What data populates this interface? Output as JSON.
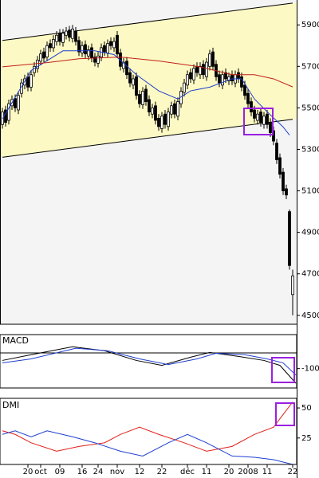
{
  "chart_data": [
    {
      "type": "candlestick",
      "categories": [
        null,
        null,
        null,
        null,
        null,
        null,
        null,
        null,
        "20",
        null,
        null,
        null,
        "oct",
        null,
        null,
        null,
        null,
        null,
        "09",
        null,
        null,
        null,
        null,
        null,
        null,
        "16",
        null,
        null,
        null,
        null,
        "24",
        null,
        null,
        null,
        null,
        null,
        "nov",
        null,
        null,
        null,
        null,
        null,
        null,
        "12",
        null,
        null,
        null,
        null,
        null,
        null,
        "22",
        null,
        null,
        null,
        null,
        null,
        null,
        null,
        "déc",
        null,
        null,
        null,
        null,
        null,
        "11",
        null,
        null,
        null,
        null,
        null,
        null,
        "20",
        null,
        null,
        null,
        null,
        null,
        "2008",
        null,
        null,
        null,
        null,
        null,
        "11",
        null,
        null,
        null,
        null,
        null,
        null,
        null,
        "22"
      ],
      "open": [
        5420,
        5490,
        5440,
        5510,
        5545,
        5490,
        5570,
        5610,
        5650,
        5600,
        5670,
        5690,
        5725,
        5770,
        5745,
        5810,
        5790,
        5820,
        5860,
        5815,
        5850,
        5875,
        5835,
        5870,
        5825,
        5765,
        5805,
        5750,
        5790,
        5745,
        5715,
        5745,
        5800,
        5765,
        5820,
        5790,
        5850,
        5765,
        5690,
        5725,
        5670,
        5610,
        5650,
        5565,
        5515,
        5590,
        5540,
        5470,
        5510,
        5450,
        5400,
        5470,
        5410,
        5470,
        5520,
        5460,
        5520,
        5575,
        5610,
        5670,
        5635,
        5700,
        5660,
        5710,
        5650,
        5700,
        5770,
        5710,
        5660,
        5610,
        5670,
        5630,
        5660,
        5620,
        5670,
        5650,
        5610,
        5570,
        5530,
        5490,
        5440,
        5480,
        5420,
        5470,
        5430,
        5390,
        5330,
        5260,
        5190,
        5110,
        5000,
        4600
      ],
      "high": [
        5500,
        5510,
        5540,
        5560,
        5565,
        5580,
        5640,
        5660,
        5670,
        5680,
        5720,
        5750,
        5780,
        5790,
        5820,
        5830,
        5850,
        5870,
        5880,
        5880,
        5890,
        5895,
        5900,
        5890,
        5845,
        5820,
        5825,
        5800,
        5810,
        5765,
        5770,
        5810,
        5820,
        5830,
        5840,
        5840,
        5870,
        5785,
        5740,
        5745,
        5690,
        5660,
        5670,
        5585,
        5600,
        5610,
        5560,
        5520,
        5530,
        5470,
        5480,
        5490,
        5500,
        5530,
        5540,
        5550,
        5600,
        5640,
        5680,
        5690,
        5710,
        5720,
        5720,
        5730,
        5740,
        5780,
        5790,
        5730,
        5680,
        5680,
        5690,
        5670,
        5680,
        5680,
        5690,
        5670,
        5630,
        5590,
        5550,
        5510,
        5490,
        5500,
        5480,
        5490,
        5450,
        5410,
        5350,
        5280,
        5210,
        5130,
        5010,
        4720
      ],
      "low": [
        5400,
        5410,
        5420,
        5490,
        5480,
        5470,
        5550,
        5590,
        5580,
        5580,
        5650,
        5670,
        5705,
        5720,
        5725,
        5770,
        5770,
        5800,
        5800,
        5795,
        5830,
        5820,
        5815,
        5800,
        5750,
        5745,
        5740,
        5730,
        5720,
        5700,
        5695,
        5725,
        5750,
        5745,
        5780,
        5770,
        5740,
        5680,
        5670,
        5640,
        5600,
        5590,
        5540,
        5500,
        5495,
        5510,
        5460,
        5450,
        5420,
        5390,
        5380,
        5400,
        5390,
        5450,
        5450,
        5440,
        5500,
        5555,
        5590,
        5620,
        5615,
        5650,
        5640,
        5640,
        5630,
        5680,
        5680,
        5630,
        5600,
        5590,
        5620,
        5610,
        5610,
        5600,
        5620,
        5580,
        5540,
        5500,
        5460,
        5430,
        5420,
        5410,
        5400,
        5400,
        5360,
        5320,
        5230,
        5160,
        5080,
        5060,
        4720,
        4500
      ],
      "close": [
        5480,
        5430,
        5520,
        5540,
        5500,
        5560,
        5620,
        5640,
        5600,
        5660,
        5700,
        5730,
        5760,
        5740,
        5800,
        5790,
        5830,
        5850,
        5820,
        5860,
        5870,
        5840,
        5880,
        5820,
        5770,
        5800,
        5760,
        5780,
        5740,
        5720,
        5750,
        5790,
        5770,
        5810,
        5800,
        5820,
        5760,
        5700,
        5720,
        5660,
        5620,
        5640,
        5560,
        5520,
        5580,
        5530,
        5480,
        5500,
        5440,
        5410,
        5460,
        5420,
        5480,
        5510,
        5470,
        5530,
        5580,
        5620,
        5660,
        5640,
        5690,
        5670,
        5700,
        5660,
        5720,
        5760,
        5700,
        5650,
        5620,
        5660,
        5640,
        5650,
        5630,
        5660,
        5640,
        5600,
        5560,
        5520,
        5480,
        5450,
        5470,
        5430,
        5460,
        5420,
        5380,
        5340,
        5250,
        5180,
        5100,
        5080,
        4740,
        4690
      ],
      "channel": [
        {
          "color": "#000000",
          "x": [
            0,
            91
          ],
          "values": [
            5825,
            6005
          ]
        },
        {
          "color": "#000000",
          "x": [
            0,
            91
          ],
          "values": [
            5262,
            5445
          ]
        }
      ],
      "channel_fill": "#fdf9c4",
      "overlays": [
        {
          "color": "#1f3fd0",
          "x": [
            0,
            9,
            19,
            29,
            35,
            42,
            49,
            55,
            59,
            65,
            72,
            75,
            79,
            84,
            88,
            90
          ],
          "values": [
            5447,
            5680,
            5775,
            5775,
            5757,
            5660,
            5582,
            5543,
            5582,
            5600,
            5640,
            5640,
            5543,
            5466,
            5408,
            5369
          ]
        },
        {
          "color": "#c0201a",
          "x": [
            0,
            14,
            24,
            37,
            49,
            62,
            72,
            79,
            85,
            91
          ],
          "values": [
            5698,
            5718,
            5737,
            5745,
            5726,
            5698,
            5660,
            5660,
            5640,
            5601
          ]
        }
      ],
      "ylim": [
        4457,
        6020
      ],
      "yticks": [
        4500,
        4700,
        4900,
        5100,
        5300,
        5500,
        5700,
        5900
      ]
    },
    {
      "type": "line",
      "title": "MACD",
      "series": [
        {
          "color": "#000000",
          "x": [
            0,
            9,
            22,
            32,
            42,
            50,
            59,
            65,
            74,
            82,
            87,
            92
          ],
          "values": [
            -47,
            -10,
            42,
            16,
            -47,
            -79,
            -26,
            5,
            -21,
            -47,
            -79,
            -195
          ]
        },
        {
          "color": "#1f3fd0",
          "x": [
            0,
            9,
            23,
            33,
            43,
            52,
            61,
            67,
            76,
            83,
            88,
            92
          ],
          "values": [
            -63,
            -37,
            32,
            16,
            -37,
            -74,
            -37,
            0,
            -10,
            -37,
            -63,
            -142
          ]
        }
      ],
      "ylim": [
        -226,
        121
      ],
      "yticks": [
        -100
      ]
    },
    {
      "type": "line",
      "title": "DMI",
      "series": [
        {
          "color": "#e0201a",
          "x": [
            0,
            4,
            9,
            17,
            24,
            32,
            37,
            43,
            49,
            57,
            64,
            72,
            79,
            85,
            89,
            91
          ],
          "values": [
            31,
            28,
            21,
            14,
            18,
            21,
            28,
            34,
            28,
            21,
            14,
            18,
            28,
            34,
            48,
            55
          ]
        },
        {
          "color": "#1f3fd0",
          "x": [
            0,
            4,
            9,
            14,
            22,
            29,
            37,
            44,
            52,
            58,
            64,
            72,
            79,
            85,
            91
          ],
          "values": [
            28,
            31,
            26,
            31,
            26,
            21,
            14,
            10,
            21,
            28,
            21,
            10,
            9,
            7,
            3
          ]
        }
      ],
      "ylim": [
        3,
        58
      ],
      "yticks": [
        25,
        50
      ]
    }
  ]
}
